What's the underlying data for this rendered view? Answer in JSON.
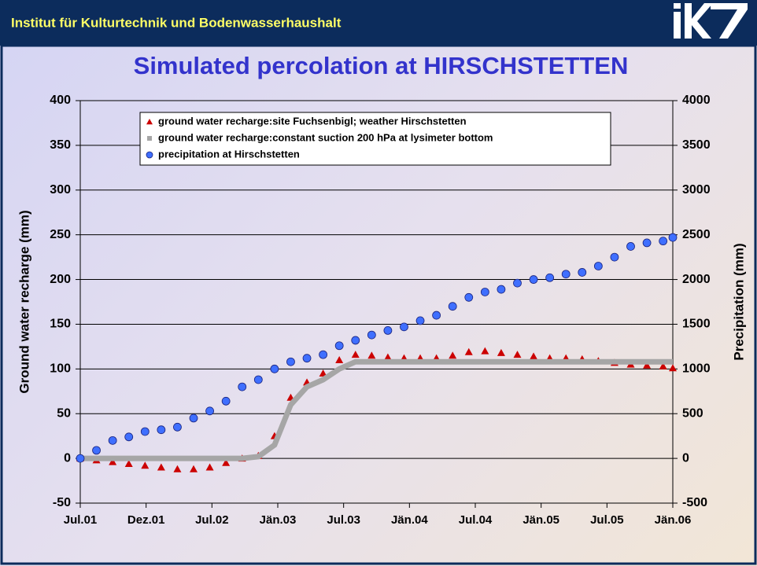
{
  "header": {
    "title": "Institut für Kulturtechnik und Bodenwasserhaushalt"
  },
  "chart_data": {
    "type": "line",
    "title": "Simulated percolation at HIRSCHSTETTEN",
    "y_label": "Ground water recharge (mm)",
    "y2_label": "Precipitation (mm)",
    "x": [
      37073,
      37118,
      37163,
      37208,
      37253,
      37298,
      37343,
      37388,
      37433,
      37478,
      37523,
      37568,
      37613,
      37658,
      37703,
      37748,
      37793,
      37838,
      37883,
      37928,
      37973,
      38018,
      38063,
      38108,
      38153,
      38198,
      38243,
      38288,
      38333,
      38378,
      38423,
      38468,
      38513,
      38558,
      38603,
      38648,
      38693,
      38720
    ],
    "xlim": [
      37073,
      38720
    ],
    "xticks": [
      {
        "value": 37073,
        "label": "Jul.01"
      },
      {
        "value": 37256,
        "label": "Dez.01"
      },
      {
        "value": 37439,
        "label": "Jul.02"
      },
      {
        "value": 37622,
        "label": "Jän.03"
      },
      {
        "value": 37805,
        "label": "Jul.03"
      },
      {
        "value": 37988,
        "label": "Jän.04"
      },
      {
        "value": 38171,
        "label": "Jul.04"
      },
      {
        "value": 38354,
        "label": "Jän.05"
      },
      {
        "value": 38537,
        "label": "Jul.05"
      },
      {
        "value": 38720,
        "label": "Jän.06"
      }
    ],
    "ylim": [
      -50,
      400
    ],
    "yticks": [
      -50,
      0,
      50,
      100,
      150,
      200,
      250,
      300,
      350,
      400
    ],
    "y2lim": [
      -500,
      4000
    ],
    "y2ticks": [
      -500,
      0,
      500,
      1000,
      1500,
      2000,
      2500,
      3000,
      3500,
      4000
    ],
    "grid": true,
    "series": [
      {
        "name": "ground water recharge:site Fuchsenbigl; weather Hirschstetten",
        "color": "#cc0000",
        "marker": "triangle",
        "values": [
          0,
          -2,
          -4,
          -6,
          -8,
          -10,
          -12,
          -12,
          -10,
          -5,
          0,
          3,
          25,
          68,
          85,
          95,
          110,
          116,
          115,
          113,
          112,
          112,
          112,
          115,
          119,
          120,
          118,
          116,
          114,
          112,
          112,
          111,
          109,
          107,
          105,
          104,
          103,
          101
        ]
      },
      {
        "name": "ground water recharge:constant suction 200 hPa at lysimeter bottom",
        "color": "#a6a6a6",
        "marker": "square",
        "values": [
          0,
          0,
          0,
          0,
          0,
          0,
          0,
          0,
          0,
          0,
          0,
          2,
          15,
          60,
          80,
          88,
          100,
          108,
          108,
          108,
          108,
          108,
          108,
          108,
          108,
          108,
          108,
          108,
          108,
          108,
          108,
          108,
          108,
          108,
          108,
          108,
          108,
          108
        ]
      },
      {
        "name": "precipitation at Hirschstetten",
        "color": "#3f6fff",
        "marker": "circle",
        "axis": "y2",
        "values": [
          0,
          90,
          200,
          240,
          300,
          320,
          350,
          450,
          530,
          640,
          800,
          880,
          1000,
          1080,
          1120,
          1160,
          1260,
          1320,
          1380,
          1430,
          1470,
          1540,
          1600,
          1700,
          1800,
          1860,
          1890,
          1960,
          2000,
          2020,
          2060,
          2080,
          2150,
          2250,
          2370,
          2410,
          2430,
          2470
        ]
      }
    ]
  }
}
